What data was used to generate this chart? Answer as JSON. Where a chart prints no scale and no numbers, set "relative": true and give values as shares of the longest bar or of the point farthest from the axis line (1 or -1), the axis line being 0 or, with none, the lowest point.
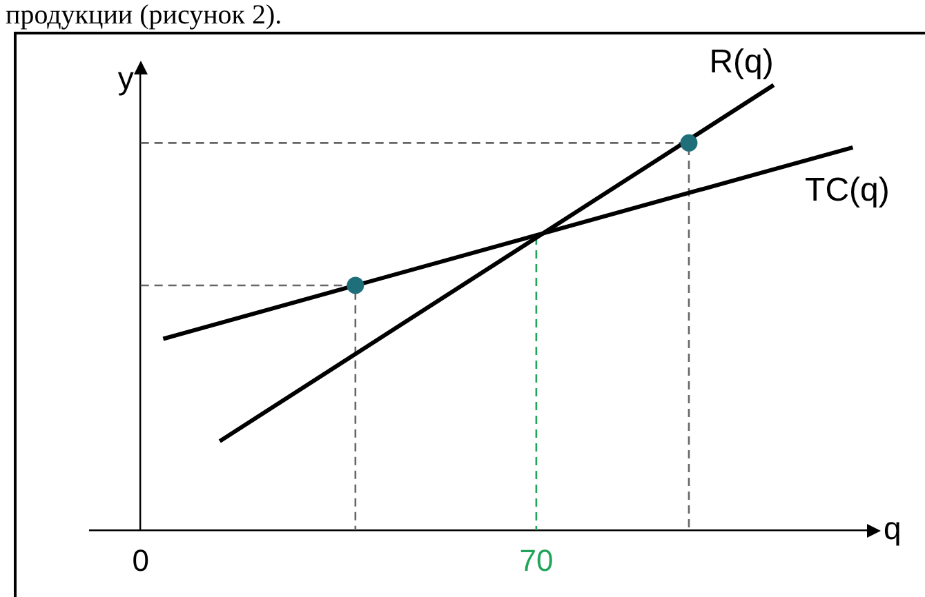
{
  "chart_data": {
    "type": "line",
    "annotations": [
      "продукции (рисунок 2)."
    ],
    "xlabel": "q",
    "ylabel": "y",
    "xlim": [
      -9,
      129
    ],
    "xticks": [
      0,
      70
    ],
    "relative": true,
    "tick_labels": "x",
    "series": [
      {
        "name": "R(q)",
        "type": "line",
        "color": "#000000",
        "x": [
          14,
          112
        ],
        "values": [
          0.2,
          1.0
        ]
      },
      {
        "name": "TC(q)",
        "type": "line",
        "color": "#000000",
        "x": [
          4,
          126
        ],
        "values": [
          0.43,
          0.86
        ]
      },
      {
        "type": "line",
        "color": "#666666",
        "line_style": "dashed",
        "x": [
          0,
          38,
          38
        ],
        "values": [
          0.55,
          0.55,
          0
        ]
      },
      {
        "type": "line",
        "color": "#666666",
        "line_style": "dashed",
        "x": [
          0,
          97,
          97
        ],
        "values": [
          0.87,
          0.87,
          0
        ]
      },
      {
        "type": "line",
        "color": "#22a55a",
        "line_style": "dashed",
        "x": [
          70,
          70
        ],
        "values": [
          0.66,
          0
        ]
      },
      {
        "type": "scatter",
        "color": "#1f6f7a",
        "marker": "circle",
        "x": [
          38,
          97
        ],
        "values": [
          0.55,
          0.87
        ]
      }
    ]
  }
}
